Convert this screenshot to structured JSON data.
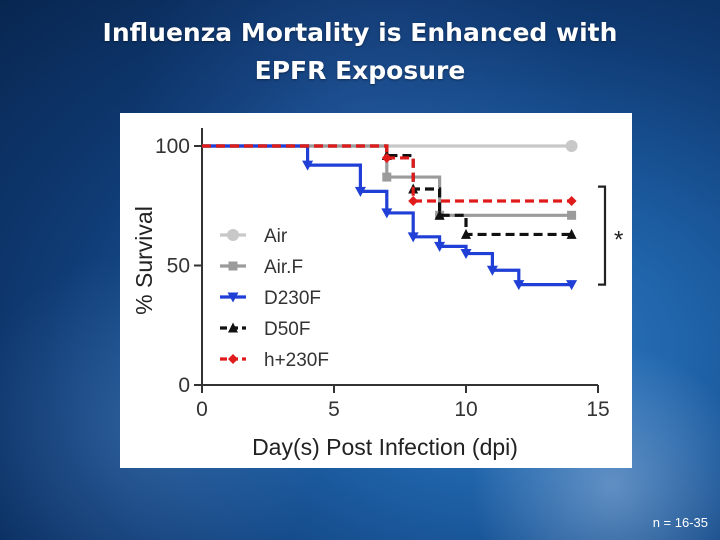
{
  "slide": {
    "title_line1": "Influenza Mortality is Enhanced with",
    "title_line2": "EPFR Exposure",
    "footnote": "n = 16-35"
  },
  "chart_data": {
    "type": "line",
    "step": true,
    "xlabel": "Day(s) Post Infection (dpi)",
    "ylabel": "% Survival",
    "xlim": [
      0,
      15
    ],
    "ylim": [
      0,
      100
    ],
    "xticks": [
      0,
      5,
      10,
      15
    ],
    "yticks": [
      0,
      50,
      100
    ],
    "legend_position": "left-middle",
    "annotation": "*",
    "series": [
      {
        "name": "Air",
        "color": "#c8c8c8",
        "dash": false,
        "marker": "circle",
        "x": [
          0,
          14
        ],
        "y": [
          100,
          100
        ]
      },
      {
        "name": "Air.F",
        "color": "#9b9b9b",
        "dash": false,
        "marker": "square",
        "x": [
          0,
          7,
          9,
          14
        ],
        "y": [
          100,
          87,
          71,
          71
        ]
      },
      {
        "name": "D230F",
        "color": "#1f3fd6",
        "dash": false,
        "marker": "triangle-down",
        "x": [
          0,
          4,
          6,
          7,
          8,
          9,
          10,
          11,
          12,
          14
        ],
        "y": [
          100,
          92,
          81,
          72,
          62,
          58,
          55,
          48,
          42,
          42
        ]
      },
      {
        "name": "D50F",
        "color": "#111111",
        "dash": true,
        "marker": "triangle-up",
        "x": [
          0,
          7,
          8,
          9,
          10,
          14
        ],
        "y": [
          100,
          96,
          82,
          71,
          63,
          63
        ]
      },
      {
        "name": "h+230F",
        "color": "#e01b1b",
        "dash": true,
        "marker": "diamond",
        "x": [
          0,
          7,
          8,
          14
        ],
        "y": [
          100,
          95,
          77,
          77
        ]
      }
    ]
  }
}
